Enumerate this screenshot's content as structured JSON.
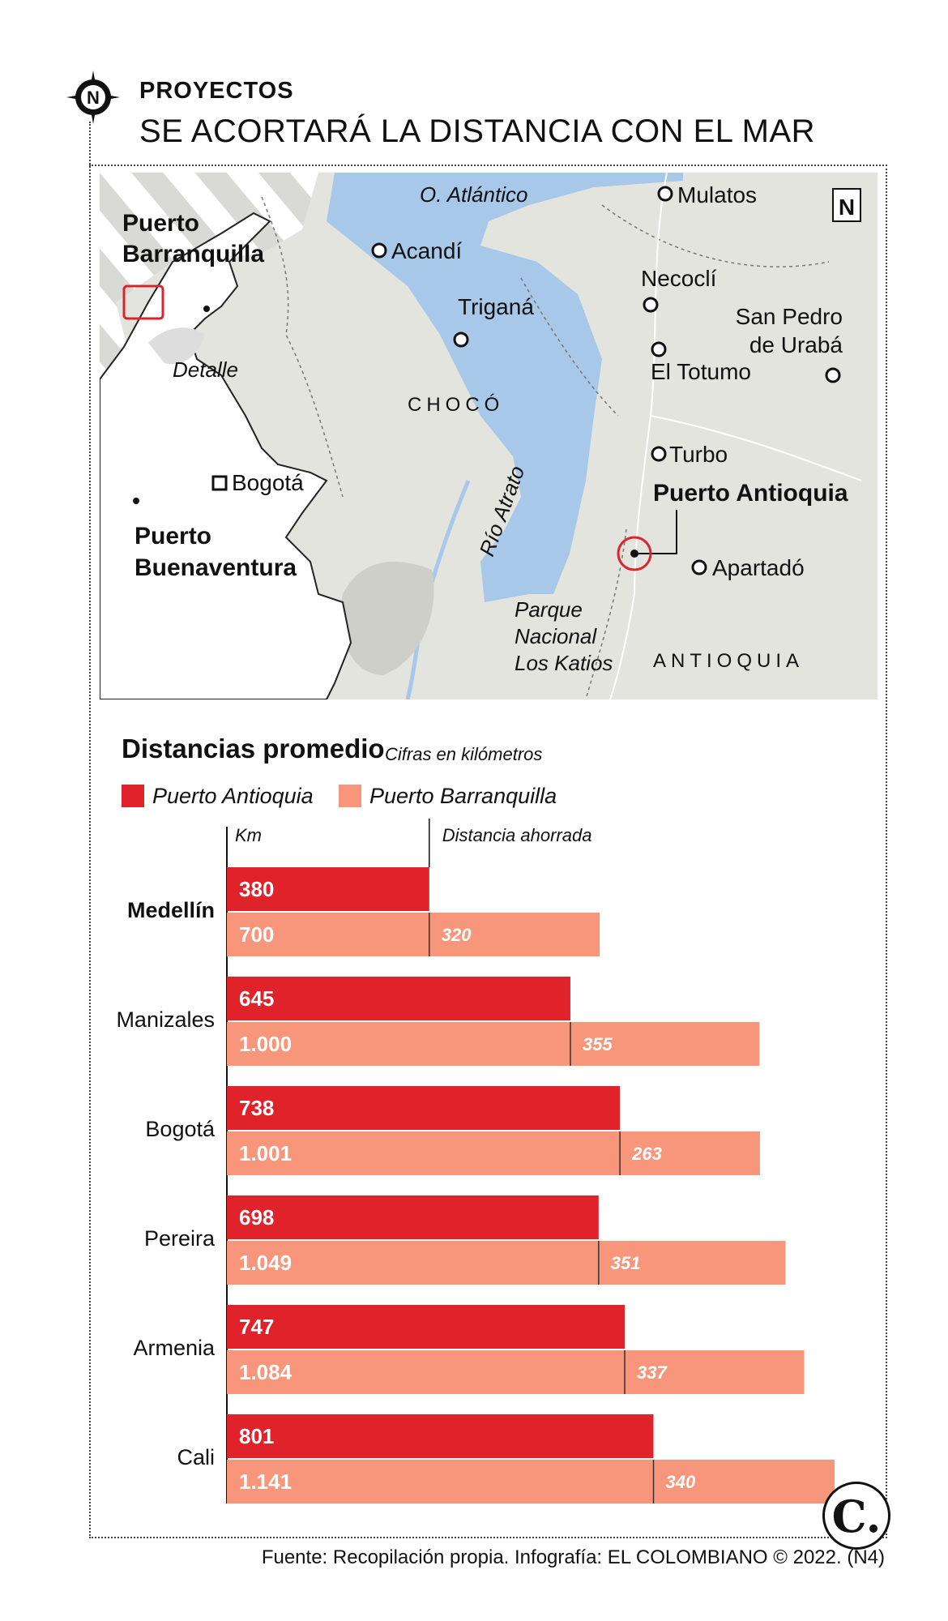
{
  "header": {
    "kicker": "PROYECTOS",
    "headline": "SE ACORTARÁ LA DISTANCIA CON EL MAR"
  },
  "icons": [
    "compass-rose-icon",
    "north-arrow-icon",
    "location-dot-icon",
    "capital-square-icon"
  ],
  "map": {
    "ocean_label": "O. Atlántico",
    "towns": [
      "Mulatos",
      "Acandí",
      "Necoclí",
      "Triganá",
      "San Pedro",
      "de Urabá",
      "El Totumo",
      "Turbo",
      "Apartadó"
    ],
    "highlight": "Puerto Antioquia",
    "regions": [
      "CHOCÓ",
      "ANTIOQUIA"
    ],
    "river": "Río Atrato",
    "park": [
      "Parque",
      "Nacional",
      "Los Katios"
    ],
    "north": "N",
    "inset": {
      "port_north": [
        "Puerto",
        "Barranquilla"
      ],
      "port_south": [
        "Puerto",
        "Buenaventura"
      ],
      "capital": "Bogotá",
      "detail": "Detalle"
    }
  },
  "colors": {
    "antioquia": "#e0222b",
    "barranquilla": "#f7967a",
    "water": "#a7c8e8",
    "land": "#e4e4df",
    "highlight_ring": "#d9262c"
  },
  "chart_data": {
    "type": "bar",
    "title": "Distancias promedio",
    "subtitle": "Cifras en kilómetros",
    "unit_label": "Km",
    "saved_label": "Distancia ahorrada",
    "categories": [
      "Medellín",
      "Manizales",
      "Bogotá",
      "Pereira",
      "Armenia",
      "Cali"
    ],
    "series": [
      {
        "name": "Puerto Antioquia",
        "values": [
          380,
          645,
          738,
          698,
          747,
          801
        ],
        "labels": [
          "380",
          "645",
          "738",
          "698",
          "747",
          "801"
        ]
      },
      {
        "name": "Puerto Barranquilla",
        "values": [
          700,
          1000,
          1001,
          1049,
          1084,
          1141
        ],
        "labels": [
          "700",
          "1.000",
          "1.001",
          "1.049",
          "1.084",
          "1.141"
        ]
      }
    ],
    "saved": [
      "320",
      "355",
      "263",
      "351",
      "337",
      "340"
    ],
    "xlim": [
      0,
      1141
    ],
    "grid": false
  },
  "footer": {
    "source": "Fuente: Recopilación propia. Infografía: EL COLOMBIANO © 2022. (N4)",
    "logo": "C."
  }
}
